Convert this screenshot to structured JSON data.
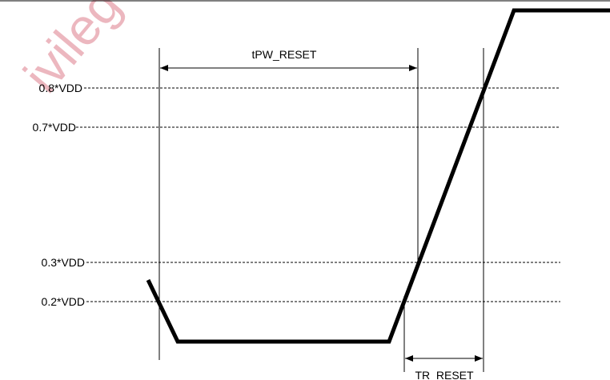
{
  "watermark": "ivileg",
  "levels": [
    "0.8*VDD",
    "0.7*VDD",
    "0.3*VDD",
    "0.2*VDD"
  ],
  "timings": {
    "pulse_width": "tPW_RESET",
    "rise_time": "TR_RESET"
  }
}
